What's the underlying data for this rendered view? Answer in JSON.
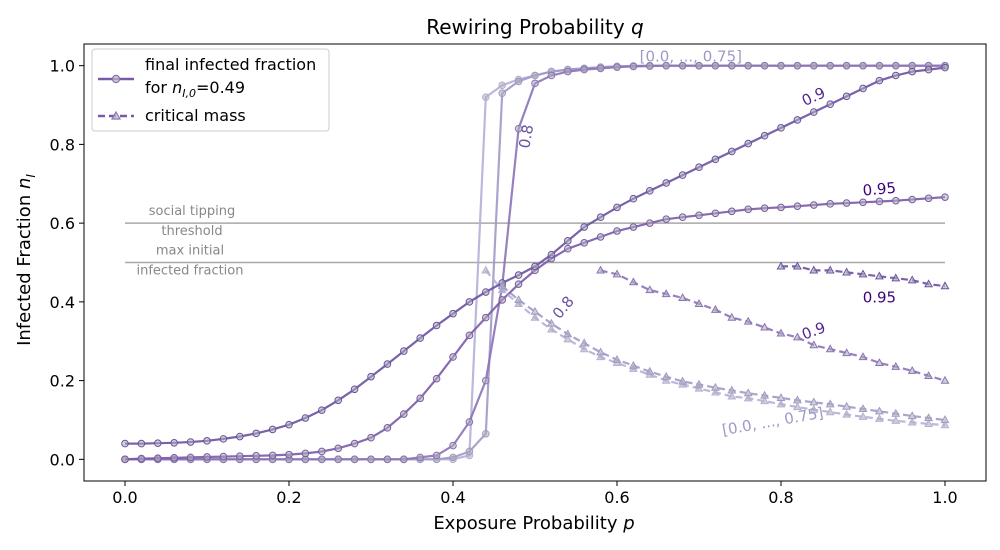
{
  "chart_data": {
    "type": "line",
    "title": "Rewiring Probability q",
    "title_italic_part": "q",
    "xlabel": "Exposure Probability p",
    "ylabel": "Infected Fraction n_I",
    "xlim": [
      -0.05,
      1.05
    ],
    "ylim": [
      -0.055,
      1.055
    ],
    "xticks": [
      "0.0",
      "0.2",
      "0.4",
      "0.6",
      "0.8",
      "1.0"
    ],
    "yticks": [
      "0.0",
      "0.2",
      "0.4",
      "0.6",
      "0.8",
      "1.0"
    ],
    "grid": false,
    "legend": {
      "placement": "top-left",
      "entries": [
        {
          "text_line1": "final infected fraction",
          "text_line2": "for n_I,0=0.49",
          "style": "solid-circle"
        },
        {
          "text_line1": "critical mass",
          "style": "dashed-triangle"
        }
      ]
    },
    "reference_lines": [
      {
        "y": 0.6,
        "label_line1": "social tipping",
        "label_line2": "threshold"
      },
      {
        "y": 0.5,
        "label_line1": "max initial",
        "label_line2": "infected fraction"
      }
    ],
    "annotations": [
      {
        "text": "[0.0, ..., 0.75]",
        "x": 0.69,
        "y": 1.022,
        "rotate": 0,
        "color": "#9e9ac8"
      },
      {
        "text": "0.8",
        "x": 0.49,
        "y": 0.82,
        "rotate": -80,
        "color": "#6a51a3"
      },
      {
        "text": "0.9",
        "x": 0.84,
        "y": 0.92,
        "rotate": -25,
        "color": "#54278f"
      },
      {
        "text": "0.95",
        "x": 0.92,
        "y": 0.685,
        "rotate": -5,
        "color": "#3f007d"
      },
      {
        "text": "0.8",
        "x": 0.535,
        "y": 0.385,
        "rotate": -50,
        "color": "#6a51a3"
      },
      {
        "text": "0.9",
        "x": 0.84,
        "y": 0.325,
        "rotate": -20,
        "color": "#54278f"
      },
      {
        "text": "0.95",
        "x": 0.92,
        "y": 0.41,
        "rotate": 0,
        "color": "#3f007d"
      },
      {
        "text": "[0.0, ..., 0.75]",
        "x": 0.79,
        "y": 0.095,
        "rotate": -10,
        "color": "#9e9ac8"
      }
    ],
    "series": [
      {
        "name": "q=0.0, ..., 0.75 final infected fraction",
        "kind": "final",
        "color": "#b4b0d7",
        "x": [
          0,
          0.02,
          0.04,
          0.06,
          0.08,
          0.1,
          0.12,
          0.14,
          0.16,
          0.18,
          0.2,
          0.22,
          0.24,
          0.26,
          0.28,
          0.3,
          0.32,
          0.34,
          0.36,
          0.38,
          0.4,
          0.42,
          0.44,
          0.46,
          0.48,
          0.5,
          0.52,
          0.54,
          0.56,
          0.58,
          0.6,
          0.62,
          0.64,
          0.66,
          0.68,
          0.7,
          0.72,
          0.74,
          0.76,
          0.78,
          0.8,
          0.82,
          0.84,
          0.86,
          0.88,
          0.9,
          0.92,
          0.94,
          0.96,
          0.98,
          1.0
        ],
        "y": [
          0,
          0,
          0,
          0,
          0,
          0,
          0,
          0,
          0,
          0,
          0,
          0,
          0,
          0,
          0,
          0,
          0,
          0,
          0,
          0,
          0,
          0.01,
          0.92,
          0.95,
          0.965,
          0.975,
          0.985,
          0.99,
          0.993,
          0.996,
          0.998,
          0.999,
          1,
          1,
          1,
          1,
          1,
          1,
          1,
          1,
          1,
          1,
          1,
          1,
          1,
          1,
          1,
          1,
          1,
          1,
          1
        ]
      },
      {
        "name": "q=0.8 final infected fraction",
        "kind": "final",
        "color": "#9e9ac8",
        "x": [
          0,
          0.02,
          0.04,
          0.06,
          0.08,
          0.1,
          0.12,
          0.14,
          0.16,
          0.18,
          0.2,
          0.22,
          0.24,
          0.26,
          0.28,
          0.3,
          0.32,
          0.34,
          0.36,
          0.38,
          0.4,
          0.42,
          0.44,
          0.46,
          0.48,
          0.5,
          0.52,
          0.54,
          0.56,
          0.58,
          0.6,
          0.62,
          0.64,
          0.66,
          0.68,
          0.7,
          0.72,
          0.74,
          0.76,
          0.78,
          0.8,
          0.82,
          0.84,
          0.86,
          0.88,
          0.9,
          0.92,
          0.94,
          0.96,
          0.98,
          1.0
        ],
        "y": [
          0,
          0,
          0,
          0,
          0,
          0,
          0,
          0,
          0,
          0,
          0,
          0,
          0,
          0,
          0,
          0,
          0,
          0,
          0,
          0,
          0.005,
          0.02,
          0.065,
          0.93,
          0.96,
          0.975,
          0.985,
          0.99,
          0.993,
          0.996,
          0.998,
          0.999,
          1,
          1,
          1,
          1,
          1,
          1,
          1,
          1,
          1,
          1,
          1,
          1,
          1,
          1,
          1,
          1,
          1,
          1,
          1
        ]
      },
      {
        "name": "q=0.9 final infected fraction",
        "kind": "final",
        "color": "#8c72b8",
        "x": [
          0,
          0.02,
          0.04,
          0.06,
          0.08,
          0.1,
          0.12,
          0.14,
          0.16,
          0.18,
          0.2,
          0.22,
          0.24,
          0.26,
          0.28,
          0.3,
          0.32,
          0.34,
          0.36,
          0.38,
          0.4,
          0.42,
          0.44,
          0.46,
          0.48,
          0.5,
          0.52,
          0.54,
          0.56,
          0.58,
          0.6,
          0.62,
          0.64,
          0.66,
          0.68,
          0.7,
          0.72,
          0.74,
          0.76,
          0.78,
          0.8,
          0.82,
          0.84,
          0.86,
          0.88,
          0.9,
          0.92,
          0.94,
          0.96,
          0.98,
          1.0
        ],
        "y": [
          0,
          0,
          0,
          0,
          0,
          0,
          0,
          0,
          0,
          0,
          0,
          0,
          0,
          0,
          0,
          0,
          0,
          0,
          0.005,
          0.01,
          0.035,
          0.095,
          0.2,
          0.44,
          0.84,
          0.955,
          0.975,
          0.985,
          0.99,
          0.993,
          0.996,
          0.998,
          0.999,
          1,
          1,
          1,
          1,
          1,
          1,
          1,
          1,
          1,
          1,
          1,
          1,
          1,
          1,
          1,
          1,
          1,
          1
        ]
      },
      {
        "name": "q=0.95 final infected fraction",
        "kind": "final",
        "color": "#7a5aa8",
        "x": [
          0,
          0.02,
          0.04,
          0.06,
          0.08,
          0.1,
          0.12,
          0.14,
          0.16,
          0.18,
          0.2,
          0.22,
          0.24,
          0.26,
          0.28,
          0.3,
          0.32,
          0.34,
          0.36,
          0.38,
          0.4,
          0.42,
          0.44,
          0.46,
          0.48,
          0.5,
          0.52,
          0.54,
          0.56,
          0.58,
          0.6,
          0.62,
          0.64,
          0.66,
          0.68,
          0.7,
          0.72,
          0.74,
          0.76,
          0.78,
          0.8,
          0.82,
          0.84,
          0.86,
          0.88,
          0.9,
          0.92,
          0.94,
          0.96,
          0.98,
          1.0
        ],
        "y": [
          0,
          0.002,
          0.003,
          0.004,
          0.005,
          0.006,
          0.007,
          0.008,
          0.009,
          0.01,
          0.012,
          0.015,
          0.02,
          0.028,
          0.04,
          0.055,
          0.08,
          0.115,
          0.155,
          0.205,
          0.26,
          0.315,
          0.36,
          0.405,
          0.445,
          0.48,
          0.51,
          0.535,
          0.55,
          0.565,
          0.58,
          0.59,
          0.6,
          0.61,
          0.615,
          0.62,
          0.625,
          0.63,
          0.635,
          0.638,
          0.64,
          0.643,
          0.646,
          0.649,
          0.651,
          0.653,
          0.655,
          0.657,
          0.66,
          0.663,
          0.666
        ]
      },
      {
        "name": "q=1.0 final infected fraction",
        "kind": "final",
        "color": "#6a51a3",
        "x": [
          0,
          0.02,
          0.04,
          0.06,
          0.08,
          0.1,
          0.12,
          0.14,
          0.16,
          0.18,
          0.2,
          0.22,
          0.24,
          0.26,
          0.28,
          0.3,
          0.32,
          0.34,
          0.36,
          0.38,
          0.4,
          0.42,
          0.44,
          0.46,
          0.48,
          0.5,
          0.52,
          0.54,
          0.56,
          0.58,
          0.6,
          0.62,
          0.64,
          0.66,
          0.68,
          0.7,
          0.72,
          0.74,
          0.76,
          0.78,
          0.8,
          0.82,
          0.84,
          0.86,
          0.88,
          0.9,
          0.92,
          0.94,
          0.96,
          0.98,
          1.0
        ],
        "y": [
          0.04,
          0.04,
          0.041,
          0.042,
          0.044,
          0.047,
          0.052,
          0.058,
          0.066,
          0.076,
          0.088,
          0.105,
          0.125,
          0.15,
          0.178,
          0.21,
          0.242,
          0.275,
          0.308,
          0.34,
          0.37,
          0.4,
          0.425,
          0.448,
          0.468,
          0.49,
          0.52,
          0.555,
          0.59,
          0.615,
          0.64,
          0.662,
          0.682,
          0.702,
          0.722,
          0.742,
          0.762,
          0.782,
          0.802,
          0.822,
          0.842,
          0.862,
          0.882,
          0.902,
          0.922,
          0.942,
          0.962,
          0.975,
          0.985,
          0.99,
          0.995
        ]
      },
      {
        "name": "q=0.0, ..., 0.75 critical mass",
        "kind": "critical",
        "color": "#b4b0d7",
        "x": [
          0.44,
          0.46,
          0.48,
          0.5,
          0.52,
          0.54,
          0.56,
          0.58,
          0.6,
          0.62,
          0.64,
          0.66,
          0.68,
          0.7,
          0.72,
          0.74,
          0.76,
          0.78,
          0.8,
          0.82,
          0.84,
          0.86,
          0.88,
          0.9,
          0.92,
          0.94,
          0.96,
          0.98,
          1.0
        ],
        "y": [
          0.48,
          0.43,
          0.395,
          0.36,
          0.33,
          0.305,
          0.28,
          0.26,
          0.245,
          0.23,
          0.215,
          0.2,
          0.19,
          0.18,
          0.17,
          0.16,
          0.155,
          0.148,
          0.14,
          0.133,
          0.126,
          0.12,
          0.114,
          0.108,
          0.103,
          0.098,
          0.094,
          0.09,
          0.087
        ]
      },
      {
        "name": "q=0.8 critical mass",
        "kind": "critical",
        "color": "#9e9ac8",
        "x": [
          0.46,
          0.48,
          0.5,
          0.52,
          0.54,
          0.56,
          0.58,
          0.6,
          0.62,
          0.64,
          0.66,
          0.68,
          0.7,
          0.72,
          0.74,
          0.76,
          0.78,
          0.8,
          0.82,
          0.84,
          0.86,
          0.88,
          0.9,
          0.92,
          0.94,
          0.96,
          0.98,
          1.0
        ],
        "y": [
          0.44,
          0.405,
          0.375,
          0.345,
          0.318,
          0.295,
          0.272,
          0.253,
          0.238,
          0.223,
          0.21,
          0.198,
          0.19,
          0.182,
          0.175,
          0.168,
          0.162,
          0.156,
          0.15,
          0.145,
          0.14,
          0.134,
          0.128,
          0.122,
          0.116,
          0.11,
          0.105,
          0.1
        ]
      },
      {
        "name": "q=0.9 critical mass",
        "kind": "critical",
        "color": "#8c72b8",
        "x": [
          0.58,
          0.6,
          0.62,
          0.64,
          0.66,
          0.68,
          0.7,
          0.72,
          0.74,
          0.76,
          0.78,
          0.8,
          0.82,
          0.84,
          0.86,
          0.88,
          0.9,
          0.92,
          0.94,
          0.96,
          0.98,
          1.0
        ],
        "y": [
          0.48,
          0.47,
          0.45,
          0.43,
          0.42,
          0.41,
          0.395,
          0.38,
          0.36,
          0.35,
          0.335,
          0.32,
          0.31,
          0.29,
          0.28,
          0.27,
          0.26,
          0.245,
          0.235,
          0.225,
          0.212,
          0.2
        ]
      },
      {
        "name": "q=0.95 critical mass",
        "kind": "critical",
        "color": "#6a51a3",
        "x": [
          0.8,
          0.82,
          0.84,
          0.86,
          0.88,
          0.9,
          0.92,
          0.94,
          0.96,
          0.98,
          1.0
        ],
        "y": [
          0.49,
          0.49,
          0.48,
          0.48,
          0.475,
          0.47,
          0.465,
          0.46,
          0.455,
          0.445,
          0.44
        ]
      }
    ]
  }
}
